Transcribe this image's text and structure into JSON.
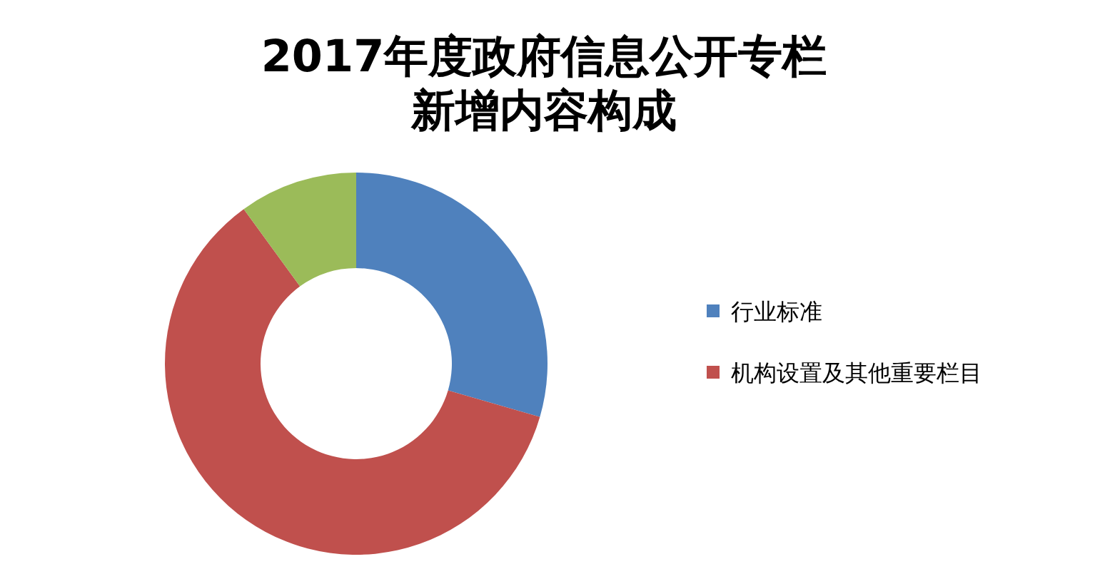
{
  "chart_data": {
    "type": "donut",
    "title": "2017年度政府信息公开专栏新增内容构成",
    "categories": [
      "行业标准",
      "机构设置及其他重要栏目",
      null
    ],
    "values": [
      29.5,
      60.5,
      10
    ],
    "colors": [
      "#4f81bd",
      "#c0504d",
      "#9bbb59"
    ],
    "legend": "right"
  }
}
